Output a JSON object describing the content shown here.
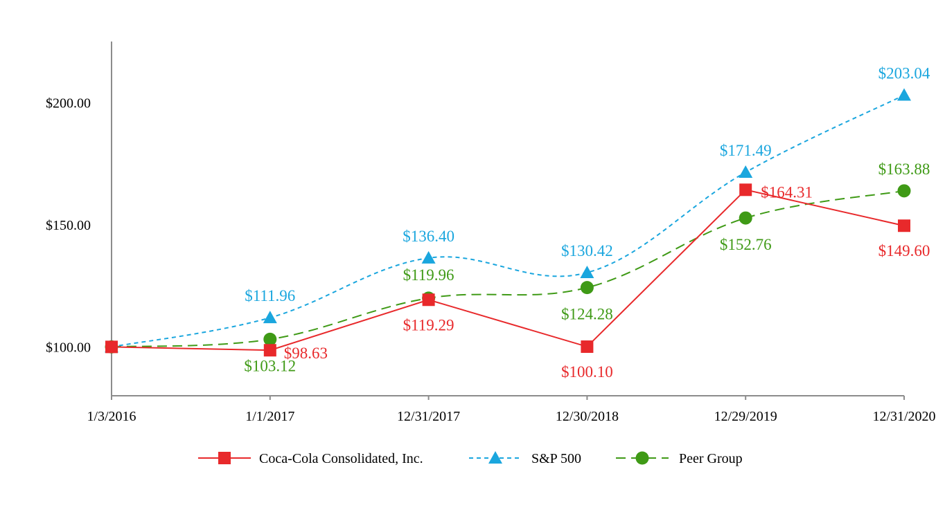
{
  "chart_data": {
    "type": "line",
    "title": "",
    "xlabel": "",
    "ylabel": "",
    "categories": [
      "1/3/2016",
      "1/1/2017",
      "12/31/2017",
      "12/30/2018",
      "12/29/2019",
      "12/31/2020"
    ],
    "ylim": [
      80,
      225
    ],
    "yticks": [
      100,
      150,
      200
    ],
    "ytick_labels": [
      "$100.00",
      "$150.00",
      "$200.00"
    ],
    "grid": false,
    "legend_position": "bottom",
    "series": [
      {
        "name": "Coca-Cola Consolidated, Inc.",
        "color": "#e8292b",
        "marker": "square",
        "line_style": "solid",
        "values": [
          100.0,
          98.63,
          119.29,
          100.1,
          164.31,
          149.6
        ],
        "labels": [
          "",
          "$98.63",
          "$119.29",
          "$100.10",
          "$164.31",
          "$149.60"
        ]
      },
      {
        "name": "S&P 500",
        "color": "#1aa6de",
        "marker": "triangle",
        "line_style": "dotted",
        "values": [
          100.0,
          111.96,
          136.4,
          130.42,
          171.49,
          203.04
        ],
        "labels": [
          "",
          "$111.96",
          "$136.40",
          "$130.42",
          "$171.49",
          "$203.04"
        ]
      },
      {
        "name": "Peer Group",
        "color": "#3f9a16",
        "marker": "circle",
        "line_style": "dashed",
        "values": [
          100.0,
          103.12,
          119.96,
          124.28,
          152.76,
          163.88
        ],
        "labels": [
          "",
          "$103.12",
          "$119.96",
          "$124.28",
          "$152.76",
          "$163.88"
        ]
      }
    ]
  }
}
